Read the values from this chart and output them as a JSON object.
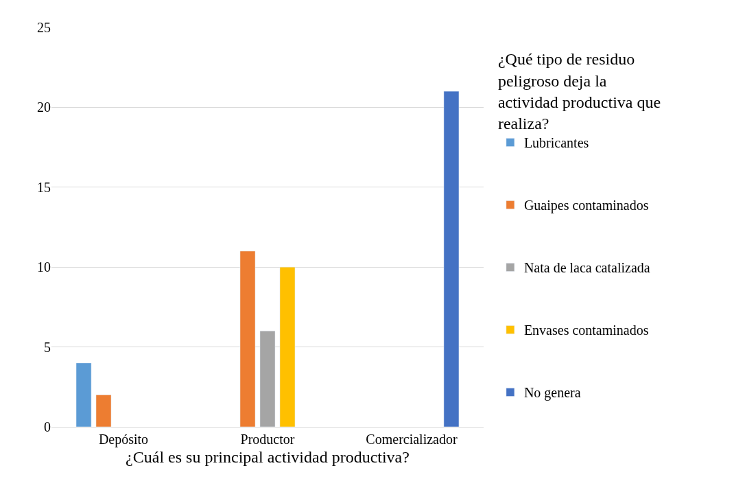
{
  "chart_data": {
    "type": "bar",
    "xlabel": "¿Cuál es su principal actividad productiva?",
    "legend_title": "¿Qué tipo de residuo peligroso deja la actividad productiva que realiza?",
    "categories": [
      "Depósito",
      "Productor",
      "Comercializador"
    ],
    "series": [
      {
        "name": "Lubricantes",
        "color": "#5b9bd5",
        "values": [
          4,
          null,
          null
        ]
      },
      {
        "name": "Guaipes contaminados",
        "color": "#ed7d31",
        "values": [
          2,
          11,
          null
        ]
      },
      {
        "name": "Nata de laca catalizada",
        "color": "#a5a5a5",
        "values": [
          null,
          6,
          null
        ]
      },
      {
        "name": "Envases contaminados",
        "color": "#ffc000",
        "values": [
          null,
          10,
          null
        ]
      },
      {
        "name": "No genera",
        "color": "#4472c4",
        "values": [
          null,
          null,
          21
        ]
      }
    ],
    "ylim": [
      0,
      25
    ],
    "yticks": [
      0,
      5,
      10,
      15,
      20,
      25
    ],
    "grid": "y",
    "legend": "right"
  }
}
